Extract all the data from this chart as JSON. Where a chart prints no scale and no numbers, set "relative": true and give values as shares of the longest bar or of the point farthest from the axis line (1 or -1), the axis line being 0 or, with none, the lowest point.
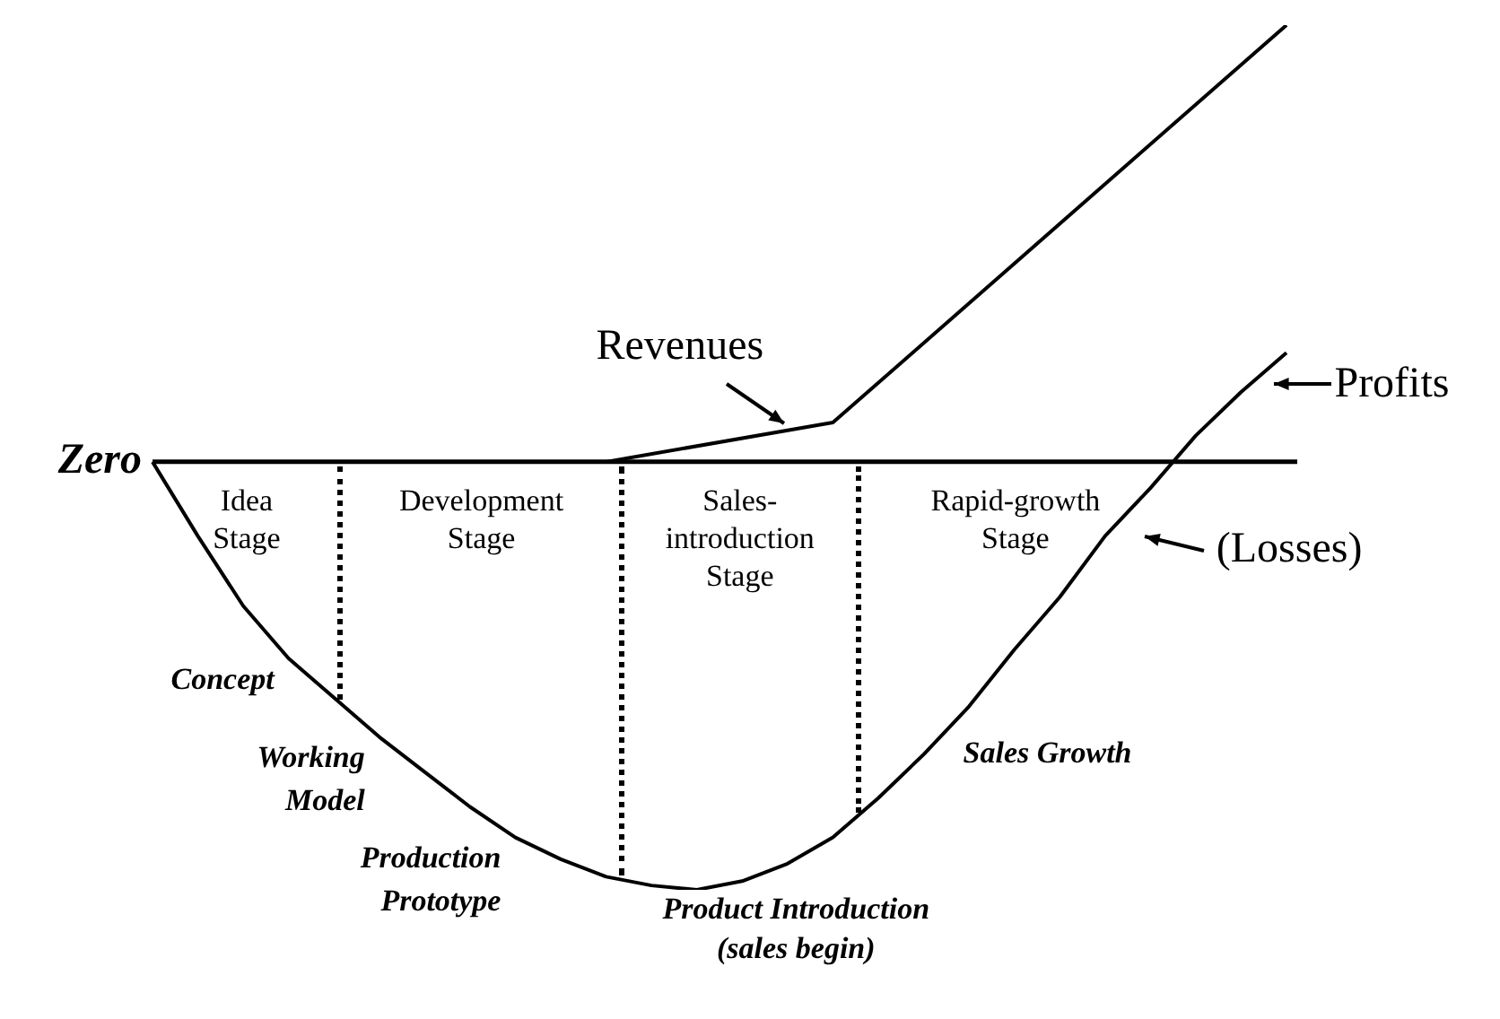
{
  "chart_data": {
    "type": "line",
    "relative": true,
    "marker": "none",
    "categories": [
      null,
      null,
      null,
      null,
      null,
      null,
      null,
      null,
      null,
      null,
      null,
      null,
      null,
      null,
      null,
      null,
      null,
      null,
      null,
      null,
      null,
      null,
      null,
      null,
      null,
      null
    ],
    "series": [
      {
        "name": "Revenues",
        "type": "line",
        "color": "#000000",
        "values": [
          null,
          null,
          null,
          null,
          null,
          null,
          null,
          null,
          null,
          null,
          0,
          null,
          null,
          null,
          null,
          0.09,
          null,
          null,
          null,
          null,
          null,
          null,
          null,
          null,
          null,
          1
        ]
      },
      {
        "name": "Profits",
        "type": "line",
        "color": "#000000",
        "values": [
          0,
          -0.17,
          -0.33,
          -0.45,
          -0.54,
          -0.63,
          -0.71,
          -0.79,
          -0.86,
          -0.91,
          -0.95,
          -0.97,
          -0.98,
          -0.96,
          -0.92,
          -0.86,
          -0.77,
          -0.67,
          -0.56,
          -0.43,
          -0.31,
          -0.17,
          -0.06,
          0.06,
          0.16,
          0.25
        ]
      }
    ],
    "ref_lines": [
      {
        "axis": "y",
        "value": 0,
        "label": "Zero",
        "color": "#000000",
        "line_style": "solid"
      }
    ],
    "annotations": [
      "Idea\nStage",
      "Development\nStage",
      "Sales-\nintroduction\nStage",
      "Rapid-growth\nStage",
      "Concept",
      "Working\nModel",
      "Production\nPrototype",
      "Product Introduction\n(sales begin)",
      "Sales Growth",
      "(Losses)"
    ]
  }
}
